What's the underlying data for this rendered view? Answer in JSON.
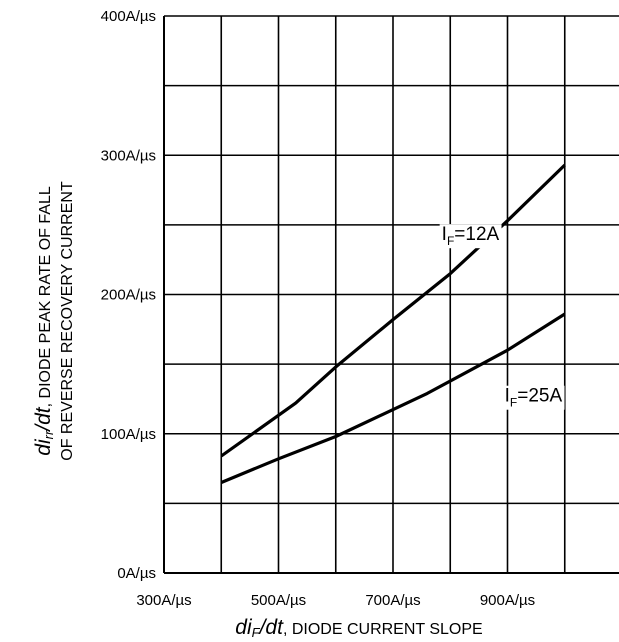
{
  "chart_data": {
    "type": "line",
    "xlabel": {
      "var": "di",
      "sub": "F",
      "tail": "/dt",
      "rest": ", DIODE CURRENT SLOPE"
    },
    "ylabel": {
      "var": "di",
      "sub": "rr",
      "tail": "/dt",
      "rest": ", DIODE PEAK RATE OF FALL",
      "line2": "OF REVERSE RECOVERY CURRENT"
    },
    "x_ticks": [
      300,
      400,
      500,
      600,
      700,
      800,
      900,
      1000,
      1100
    ],
    "x_tick_labels": [
      {
        "value": 300,
        "label": "300A/µs"
      },
      {
        "value": 500,
        "label": "500A/µs"
      },
      {
        "value": 700,
        "label": "700A/µs"
      },
      {
        "value": 900,
        "label": "900A/µs"
      }
    ],
    "y_ticks": [
      0,
      50,
      100,
      150,
      200,
      250,
      300,
      350,
      400
    ],
    "y_tick_labels": [
      {
        "value": 0,
        "label": "0A/µs"
      },
      {
        "value": 100,
        "label": "100A/µs"
      },
      {
        "value": 200,
        "label": "200A/µs"
      },
      {
        "value": 300,
        "label": "300A/µs"
      },
      {
        "value": 400,
        "label": "400A/µs"
      }
    ],
    "xlim": [
      300,
      1100
    ],
    "ylim": [
      0,
      400
    ],
    "grid": true,
    "series": [
      {
        "name": "IF=12A",
        "label_main": "I",
        "label_sub": "F",
        "label_rest": "=12A",
        "label_at": [
          785,
          239
        ],
        "x": [
          400,
          530,
          600,
          700,
          800,
          900,
          1000
        ],
        "y": [
          84,
          122,
          148,
          182,
          215,
          253,
          293
        ]
      },
      {
        "name": "IF=25A",
        "label_main": "I",
        "label_sub": "F",
        "label_rest": "=25A",
        "label_at": [
          895,
          123
        ],
        "x": [
          400,
          500,
          600,
          760,
          900,
          1000
        ],
        "y": [
          65,
          82,
          98,
          129,
          160,
          186
        ]
      }
    ]
  }
}
